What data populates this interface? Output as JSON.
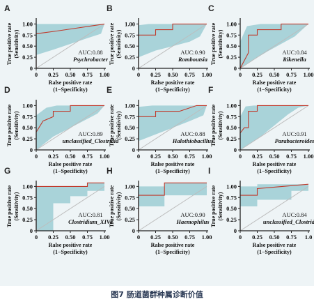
{
  "caption": "图7  肠道菌群种属诊断价值",
  "colors": {
    "band": "#a9d3d9",
    "curve": "#c0392b",
    "diagonal": "#bdbdbd",
    "axis": "#222222",
    "figure_bg": "#eef4f6"
  },
  "chart_data": [
    {
      "type": "line",
      "panel_label": "A",
      "auc_text": "AUC:0.88",
      "taxon": "Psychrobacter",
      "xlabel": "Ralse positive rate",
      "xlabel2": "(1−Specificity)",
      "ylabel": "True positive rate",
      "ylabel2": "(Sensitivity)",
      "xticks": [
        "0",
        "0.25",
        "0.50",
        "0.75",
        "1.00"
      ],
      "yticks": [
        "0",
        "0.25",
        "0.50",
        "0.75",
        "1.00"
      ],
      "xlim": [
        0,
        1
      ],
      "ylim": [
        0,
        1
      ],
      "curve": [
        [
          0,
          0
        ],
        [
          0,
          0.78
        ],
        [
          0.3,
          0.84
        ],
        [
          0.65,
          0.92
        ],
        [
          1,
          1
        ]
      ],
      "band_upper": [
        [
          0,
          1
        ],
        [
          1,
          1
        ]
      ],
      "band_lower": [
        [
          0,
          0.3
        ],
        [
          0.25,
          0.42
        ],
        [
          0.5,
          0.55
        ],
        [
          0.75,
          0.68
        ],
        [
          0.95,
          0.78
        ],
        [
          1,
          1
        ]
      ]
    },
    {
      "type": "line",
      "panel_label": "B",
      "auc_text": "AUC:0.90",
      "taxon": "Romboutsia",
      "xlabel": "Ralse positive rate",
      "xlabel2": "(1−Specificity)",
      "ylabel": "True positive rate",
      "ylabel2": "(Sensitivity)",
      "xticks": [
        "0",
        "0.25",
        "0.50",
        "0.75",
        "1.00"
      ],
      "yticks": [
        "0",
        "0.25",
        "0.50",
        "0.75",
        "1.00"
      ],
      "xlim": [
        0,
        1
      ],
      "ylim": [
        0,
        1
      ],
      "curve": [
        [
          0,
          0
        ],
        [
          0,
          0.75
        ],
        [
          0.25,
          0.75
        ],
        [
          0.25,
          0.87
        ],
        [
          0.5,
          0.87
        ],
        [
          0.5,
          1
        ],
        [
          1,
          1
        ]
      ],
      "band_upper": [
        [
          0,
          0.97
        ],
        [
          0.15,
          1
        ],
        [
          1,
          1
        ]
      ],
      "band_lower": [
        [
          0,
          0.25
        ],
        [
          0.25,
          0.4
        ],
        [
          0.5,
          0.5
        ],
        [
          0.75,
          0.6
        ],
        [
          0.9,
          0.72
        ],
        [
          1,
          1
        ]
      ]
    },
    {
      "type": "line",
      "panel_label": "C",
      "auc_text": "AUC:0.84",
      "taxon": "Rikenella",
      "xlabel": "Ralse positive rate",
      "xlabel2": "(1−Specificity)",
      "ylabel": "True positive rate",
      "ylabel2": "(Sensitivity)",
      "xticks": [
        "0",
        "0.25",
        "0.50",
        "0.75",
        "1.00"
      ],
      "yticks": [
        "0",
        "0.25",
        "0.50",
        "0.75",
        "1.00"
      ],
      "xlim": [
        0,
        1
      ],
      "ylim": [
        0,
        1
      ],
      "curve": [
        [
          0,
          0
        ],
        [
          0.12,
          0.35
        ],
        [
          0.12,
          0.75
        ],
        [
          0.25,
          0.75
        ],
        [
          0.25,
          0.87
        ],
        [
          0.6,
          0.87
        ],
        [
          0.6,
          1
        ],
        [
          1,
          1
        ]
      ],
      "band_upper": [
        [
          0,
          0.6
        ],
        [
          0.1,
          0.95
        ],
        [
          0.3,
          1
        ],
        [
          1,
          1
        ]
      ],
      "band_lower": [
        [
          0,
          0
        ],
        [
          0.2,
          0.2
        ],
        [
          0.4,
          0.38
        ],
        [
          0.6,
          0.55
        ],
        [
          0.8,
          0.72
        ],
        [
          1,
          1
        ]
      ]
    },
    {
      "type": "line",
      "panel_label": "D",
      "auc_text": "AUC:0.89",
      "taxon": "unclassified_Clostridia",
      "xlabel": "Ralse positive rate",
      "xlabel2": "(1−Specificity)",
      "ylabel": "True positive rate",
      "ylabel2": "(Sensitivity)",
      "xticks": [
        "0",
        "0.25",
        "0.50",
        "0.75",
        "1.00"
      ],
      "yticks": [
        "0",
        "0.25",
        "0.50",
        "0.75",
        "1.00"
      ],
      "xlim": [
        0,
        1
      ],
      "ylim": [
        0,
        1
      ],
      "curve": [
        [
          0,
          0
        ],
        [
          0,
          0.4
        ],
        [
          0.1,
          0.65
        ],
        [
          0.25,
          0.75
        ],
        [
          0.25,
          0.87
        ],
        [
          0.5,
          0.87
        ],
        [
          0.5,
          1
        ],
        [
          1,
          1
        ]
      ],
      "band_upper": [
        [
          0,
          0.78
        ],
        [
          0.15,
          0.95
        ],
        [
          0.3,
          1
        ],
        [
          1,
          1
        ]
      ],
      "band_lower": [
        [
          0,
          0
        ],
        [
          0.25,
          0.3
        ],
        [
          0.5,
          0.5
        ],
        [
          0.75,
          0.7
        ],
        [
          0.9,
          0.82
        ],
        [
          1,
          1
        ]
      ]
    },
    {
      "type": "line",
      "panel_label": "E",
      "auc_text": "AUC:0.88",
      "taxon": "Halothiobacillus",
      "xlabel": "Ralse positive rate",
      "xlabel2": "(1−Specificity)",
      "ylabel": "True positive rate",
      "ylabel2": "(Sensitivity)",
      "xticks": [
        "0",
        "0.25",
        "0.50",
        "0.75",
        "1.00"
      ],
      "yticks": [
        "0",
        "0.25",
        "0.50",
        "0.75",
        "1.00"
      ],
      "xlim": [
        0,
        1
      ],
      "ylim": [
        0,
        1
      ],
      "curve": [
        [
          0,
          0
        ],
        [
          0,
          0.75
        ],
        [
          0.25,
          0.75
        ],
        [
          0.25,
          0.87
        ],
        [
          0.6,
          0.87
        ],
        [
          0.85,
          1
        ],
        [
          1,
          1
        ]
      ],
      "band_upper": [
        [
          0,
          0.97
        ],
        [
          0.2,
          1
        ],
        [
          1,
          1
        ]
      ],
      "band_lower": [
        [
          0,
          0.2
        ],
        [
          0.25,
          0.35
        ],
        [
          0.5,
          0.5
        ],
        [
          0.75,
          0.65
        ],
        [
          0.95,
          0.78
        ],
        [
          1,
          1
        ]
      ]
    },
    {
      "type": "line",
      "panel_label": "F",
      "auc_text": "AUC:0.91",
      "taxon": "Parabacteroides",
      "xlabel": "Ralse positive rate",
      "xlabel2": "(1−Specificity)",
      "ylabel": "True positive rate",
      "ylabel2": "(Sensitivity)",
      "xticks": [
        "0",
        "0.25",
        "0.50",
        "0.75",
        "1.00"
      ],
      "yticks": [
        "0",
        "0.25",
        "0.50",
        "0.75",
        "1.00"
      ],
      "xlim": [
        0,
        1
      ],
      "ylim": [
        0,
        1
      ],
      "curve": [
        [
          0,
          0
        ],
        [
          0,
          0.38
        ],
        [
          0.06,
          0.5
        ],
        [
          0.12,
          0.5
        ],
        [
          0.12,
          0.87
        ],
        [
          0.25,
          0.87
        ],
        [
          0.25,
          1
        ],
        [
          1,
          1
        ]
      ],
      "band_upper": [
        [
          0,
          0.75
        ],
        [
          0.08,
          0.98
        ],
        [
          0.2,
          1
        ],
        [
          1,
          1
        ]
      ],
      "band_lower": [
        [
          0,
          0
        ],
        [
          0.15,
          0.15
        ],
        [
          0.3,
          0.3
        ],
        [
          0.5,
          0.55
        ],
        [
          0.7,
          0.8
        ],
        [
          0.85,
          0.95
        ],
        [
          1,
          1
        ]
      ]
    },
    {
      "type": "line",
      "panel_label": "G",
      "auc_text": "AUC:0.81",
      "taxon": "Clostridium_XIVa",
      "xlabel": "Ralse positive rate",
      "xlabel2": "(1−Specificity)",
      "ylabel": "True positive rate",
      "ylabel2": "(Sensitivity)",
      "xticks": [
        "0",
        "0.25",
        "0.50",
        "0.75",
        "1.00"
      ],
      "yticks": [
        "0",
        "0.25",
        "0.50",
        "0.75",
        "1.00"
      ],
      "xlim": [
        0,
        1
      ],
      "ylim": [
        0,
        1
      ],
      "curve": [
        [
          0,
          0
        ],
        [
          0,
          1
        ],
        [
          0.75,
          1
        ],
        [
          0.75,
          1.08
        ],
        [
          1,
          1.08
        ]
      ],
      "band_upper": [
        [
          0,
          1
        ],
        [
          0.75,
          1
        ],
        [
          0.75,
          1.08
        ],
        [
          1,
          1.08
        ]
      ],
      "band_lower": [
        [
          0,
          0
        ],
        [
          0.25,
          0
        ],
        [
          0.25,
          0.62
        ],
        [
          0.5,
          0.62
        ],
        [
          0.5,
          0.78
        ],
        [
          0.75,
          0.78
        ],
        [
          0.75,
          0.9
        ],
        [
          1,
          0.9
        ]
      ]
    },
    {
      "type": "line",
      "panel_label": "H",
      "auc_text": "AUC:0.90",
      "taxon": "Haemophilus",
      "xlabel": "Ralse positive rate",
      "xlabel2": "(1−Specificity)",
      "ylabel": "True positive rate",
      "ylabel2": "(Sensitivity)",
      "xticks": [
        "0",
        "0.25",
        "0.50",
        "0.75",
        "1.00"
      ],
      "yticks": [
        "0",
        "0.25",
        "0.50",
        "0.75",
        "1.00"
      ],
      "xlim": [
        0,
        1
      ],
      "ylim": [
        0,
        1
      ],
      "curve": [
        [
          0,
          0
        ],
        [
          0,
          0.8
        ],
        [
          0.38,
          0.8
        ],
        [
          0.38,
          1.08
        ],
        [
          1,
          1.08
        ]
      ],
      "band_upper": [
        [
          0,
          1
        ],
        [
          0.38,
          1
        ],
        [
          0.38,
          1.08
        ],
        [
          1,
          1.08
        ]
      ],
      "band_lower": [
        [
          0,
          0.55
        ],
        [
          0.38,
          0.55
        ],
        [
          0.38,
          0.8
        ],
        [
          1,
          0.8
        ]
      ]
    },
    {
      "type": "line",
      "panel_label": "I",
      "auc_text": "AUC:0.84",
      "taxon": "unclassified_Clostridiales",
      "xlabel": "Ralse positive rate",
      "xlabel2": "(1−Specificity)",
      "ylabel": "True positive rate",
      "ylabel2": "(Sensitivity)",
      "xticks": [
        "0",
        "0.25",
        "0.50",
        "0.75",
        "1.0"
      ],
      "yticks": [
        "0",
        "0.25",
        "0.50",
        "0.75",
        "1.00"
      ],
      "xlim": [
        0,
        1
      ],
      "ylim": [
        0,
        1
      ],
      "curve": [
        [
          0,
          0.8
        ],
        [
          0.25,
          0.8
        ],
        [
          0.25,
          0.95
        ],
        [
          1,
          1.05
        ]
      ],
      "band_upper": [
        [
          0,
          1
        ],
        [
          0.25,
          1
        ],
        [
          0.25,
          1.05
        ],
        [
          1,
          1.05
        ]
      ],
      "band_lower": [
        [
          0,
          0.55
        ],
        [
          0.25,
          0.55
        ],
        [
          0.25,
          0.7
        ],
        [
          0.75,
          0.7
        ],
        [
          0.75,
          0.9
        ],
        [
          1,
          0.9
        ]
      ]
    }
  ]
}
